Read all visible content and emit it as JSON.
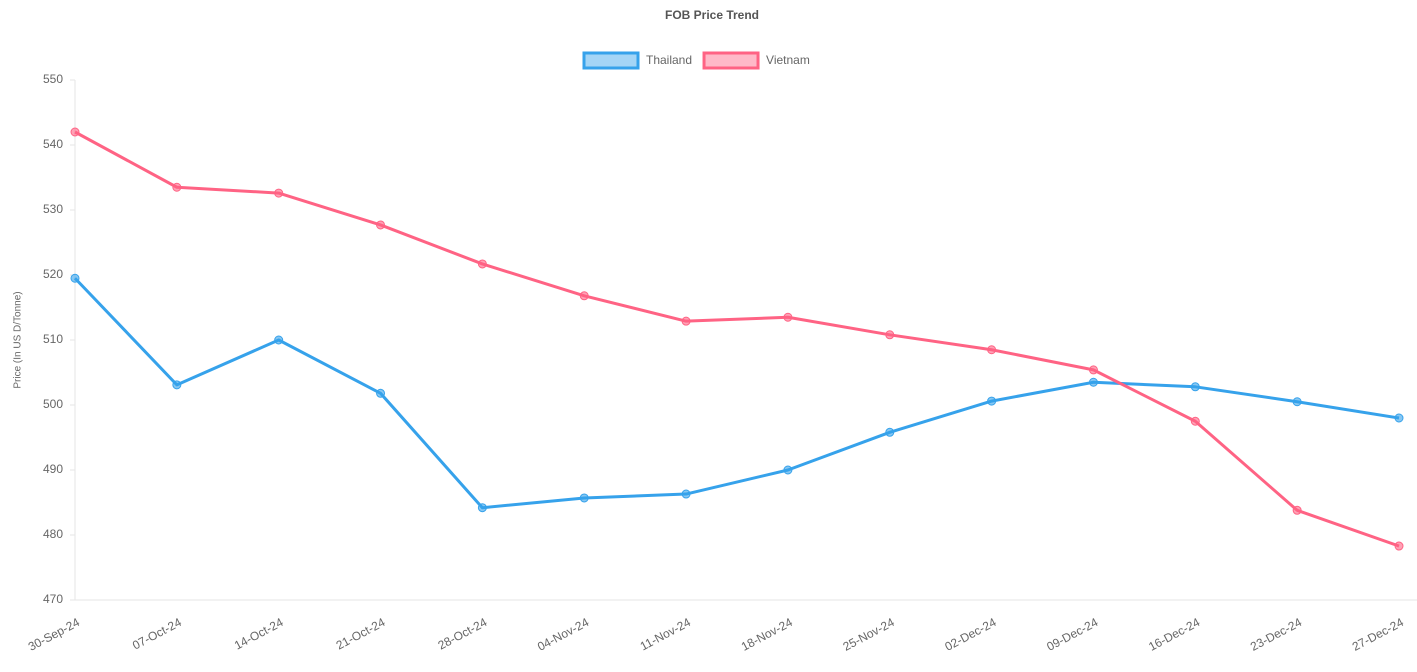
{
  "chart_data": {
    "type": "line",
    "title": "FOB Price Trend",
    "y_label": "Price (In US D/Tonne)",
    "categories": [
      "30-Sep-24",
      "07-Oct-24",
      "14-Oct-24",
      "21-Oct-24",
      "28-Oct-24",
      "04-Nov-24",
      "11-Nov-24",
      "18-Nov-24",
      "25-Nov-24",
      "02-Dec-24",
      "09-Dec-24",
      "16-Dec-24",
      "23-Dec-24",
      "27-Dec-24"
    ],
    "series": [
      {
        "name": "Thailand",
        "color": "#36a2eb",
        "values": [
          519.5,
          503.1,
          510,
          501.8,
          484.2,
          485.7,
          486.3,
          490,
          495.8,
          500.6,
          503.5,
          502.8,
          500.5,
          498
        ]
      },
      {
        "name": "Vietnam",
        "color": "#ff6384",
        "values": [
          542,
          533.5,
          532.6,
          527.7,
          521.7,
          516.8,
          512.9,
          513.5,
          510.8,
          508.5,
          505.4,
          497.5,
          483.8,
          478.3
        ]
      }
    ],
    "ylim": [
      470,
      550
    ],
    "yticks": [
      470,
      480,
      490,
      500,
      510,
      520,
      530,
      540,
      550
    ],
    "grid": false,
    "legend": "top"
  }
}
